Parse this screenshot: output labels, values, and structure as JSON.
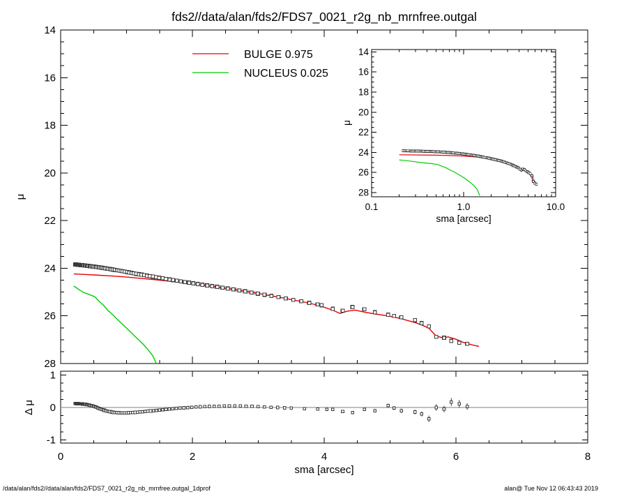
{
  "page": {
    "title": "fds2//data/alan/fds2/FDS7_0021_r2g_nb_mrnfree.outgal",
    "footer_left": "/data/alan/fds2//data/alan/fds2/FDS7_0021_r2g_nb_mrnfree.outgal_1dprof",
    "footer_right": "alan@  Tue Nov 12 06:43:43 2019"
  },
  "legend": {
    "entries": [
      {
        "name": "BULGE",
        "value": "0.975",
        "label": "BULGE  0.975",
        "color": "#e60000"
      },
      {
        "name": "NUCLEUS",
        "value": "0.025",
        "label": "NUCLEUS  0.025",
        "color": "#00cc00"
      }
    ]
  },
  "axes": {
    "mu": "μ",
    "dmu": "Δ μ",
    "sma": "sma [arcsec]"
  },
  "colors": {
    "bulge": "#e60000",
    "nucleus": "#00cc00",
    "marker": "#3a3a3a",
    "halo": "#c4c4c4",
    "zero_line": "#999999",
    "frame": "#000000"
  },
  "chart_data": [
    {
      "id": "main",
      "type": "scatter",
      "xlabel": "sma [arcsec]",
      "ylabel": "μ",
      "xlim": [
        0,
        8
      ],
      "ylim": [
        28,
        14
      ],
      "x_major_step": 2,
      "x_minor_step": 0.5,
      "y_major_step": 2,
      "y_minor_step": 0.5,
      "ytick_labels": [
        "14",
        "16",
        "18",
        "20",
        "22",
        "24",
        "26",
        "28"
      ],
      "yticks": [
        14,
        16,
        18,
        20,
        22,
        24,
        26,
        28
      ],
      "grid": false,
      "legend_position": "top-left-inside",
      "series": [
        {
          "name": "BULGE",
          "type": "line",
          "color": "#e60000",
          "fraction": 0.975,
          "points": [
            [
              0.2,
              24.24
            ],
            [
              0.5,
              24.28
            ],
            [
              0.8,
              24.33
            ],
            [
              1.0,
              24.37
            ],
            [
              1.2,
              24.42
            ],
            [
              1.4,
              24.47
            ],
            [
              1.6,
              24.53
            ],
            [
              1.8,
              24.59
            ],
            [
              2.0,
              24.65
            ],
            [
              2.2,
              24.72
            ],
            [
              2.4,
              24.8
            ],
            [
              2.6,
              24.88
            ],
            [
              2.8,
              24.97
            ],
            [
              3.0,
              25.06
            ],
            [
              3.2,
              25.16
            ],
            [
              3.4,
              25.26
            ],
            [
              3.6,
              25.37
            ],
            [
              3.8,
              25.48
            ],
            [
              3.96,
              25.6
            ],
            [
              4.13,
              25.76
            ],
            [
              4.24,
              25.9
            ],
            [
              4.35,
              25.8
            ],
            [
              4.47,
              25.76
            ],
            [
              4.61,
              25.84
            ],
            [
              4.77,
              25.92
            ],
            [
              4.97,
              26.0
            ],
            [
              5.17,
              26.12
            ],
            [
              5.38,
              26.28
            ],
            [
              5.48,
              26.38
            ],
            [
              5.59,
              26.52
            ],
            [
              5.7,
              26.85
            ],
            [
              5.8,
              26.92
            ],
            [
              5.88,
              26.88
            ],
            [
              6.0,
              26.98
            ],
            [
              6.1,
              27.1
            ],
            [
              6.25,
              27.22
            ],
            [
              6.35,
              27.28
            ]
          ]
        },
        {
          "name": "NUCLEUS",
          "type": "line",
          "color": "#00cc00",
          "fraction": 0.025,
          "points": [
            [
              0.2,
              24.75
            ],
            [
              0.28,
              24.9
            ],
            [
              0.35,
              25.02
            ],
            [
              0.45,
              25.12
            ],
            [
              0.52,
              25.2
            ],
            [
              0.58,
              25.38
            ],
            [
              0.65,
              25.55
            ],
            [
              0.72,
              25.78
            ],
            [
              0.78,
              25.92
            ],
            [
              0.85,
              26.12
            ],
            [
              0.95,
              26.38
            ],
            [
              1.05,
              26.65
            ],
            [
              1.15,
              26.92
            ],
            [
              1.25,
              27.18
            ],
            [
              1.32,
              27.4
            ],
            [
              1.4,
              27.68
            ],
            [
              1.5,
              28.3
            ]
          ]
        },
        {
          "name": "galaxy-profile",
          "type": "markers",
          "marker": "open-square",
          "color": "#3a3a3a",
          "halo_color": "#c4c4c4",
          "anchors": [
            [
              0.22,
              23.84
            ],
            [
              0.35,
              23.88
            ],
            [
              0.5,
              23.93
            ],
            [
              0.65,
              23.99
            ],
            [
              0.8,
              24.06
            ],
            [
              0.95,
              24.13
            ],
            [
              1.1,
              24.21
            ],
            [
              1.25,
              24.28
            ],
            [
              1.4,
              24.35
            ],
            [
              1.6,
              24.45
            ],
            [
              1.8,
              24.54
            ],
            [
              2.0,
              24.63
            ],
            [
              2.2,
              24.71
            ],
            [
              2.4,
              24.79
            ],
            [
              2.6,
              24.88
            ],
            [
              2.8,
              24.97
            ],
            [
              3.0,
              25.07
            ],
            [
              3.2,
              25.16
            ],
            [
              3.4,
              25.26
            ],
            [
              3.6,
              25.36
            ],
            [
              3.8,
              25.47
            ],
            [
              3.96,
              25.55
            ],
            [
              4.13,
              25.7
            ],
            [
              4.28,
              25.78
            ],
            [
              4.43,
              25.63
            ],
            [
              4.61,
              25.72
            ],
            [
              4.77,
              25.85
            ],
            [
              4.97,
              25.95
            ],
            [
              5.06,
              26.0
            ],
            [
              5.17,
              26.06
            ],
            [
              5.38,
              26.18
            ],
            [
              5.48,
              26.3
            ],
            [
              5.59,
              26.44
            ],
            [
              5.7,
              26.88
            ],
            [
              5.82,
              26.92
            ],
            [
              5.93,
              27.05
            ],
            [
              6.05,
              27.12
            ],
            [
              6.17,
              27.17
            ]
          ],
          "resample": {
            "spacing": "log",
            "start": 0.22,
            "dense_end": 3.9,
            "dense_count": 88
          }
        }
      ]
    },
    {
      "id": "inset",
      "type": "scatter",
      "xscale": "log",
      "xlabel": "sma [arcsec]",
      "ylabel": "μ",
      "xlim": [
        0.1,
        10
      ],
      "ylim": [
        28.42,
        13.76
      ],
      "xticks": [
        0.1,
        1,
        10
      ],
      "xtick_labels": [
        "0.1",
        "1.0",
        "10.0"
      ],
      "yticks": [
        14,
        16,
        18,
        20,
        22,
        24,
        26,
        28
      ],
      "ytick_labels": [
        "14",
        "16",
        "18",
        "20",
        "22",
        "24",
        "26",
        "28"
      ],
      "y_minor_step": 0.5,
      "grid": false,
      "series_refs": [
        "BULGE",
        "NUCLEUS",
        "galaxy-profile"
      ],
      "resample": {
        "spacing": "log",
        "start": 0.22,
        "end": 6.17,
        "count": 90
      }
    },
    {
      "id": "residual",
      "type": "scatter",
      "xlabel": "sma [arcsec]",
      "ylabel": "Δ μ",
      "xlim": [
        0,
        8
      ],
      "ylim": [
        -1.097,
        1.118
      ],
      "x_major_step": 2,
      "x_minor_step": 0.5,
      "xticks": [
        0,
        2,
        4,
        6,
        8
      ],
      "xtick_labels": [
        "0",
        "2",
        "4",
        "6",
        "8"
      ],
      "yticks": [
        1,
        0,
        -1
      ],
      "ytick_labels": [
        "1",
        "0",
        "-1"
      ],
      "y_minor_step": 0.25,
      "zero_line": true,
      "grid": false,
      "series": [
        {
          "name": "delta-mu",
          "type": "markers",
          "marker": "open-square",
          "color": "#3a3a3a",
          "halo_color": "#c8c8c8",
          "anchors": [
            [
              0.22,
              0.12,
              0
            ],
            [
              0.3,
              0.115,
              0
            ],
            [
              0.4,
              0.09,
              0
            ],
            [
              0.48,
              0.05,
              0
            ],
            [
              0.55,
              0.0,
              0
            ],
            [
              0.62,
              -0.06,
              0
            ],
            [
              0.7,
              -0.11,
              0
            ],
            [
              0.8,
              -0.15,
              0
            ],
            [
              0.9,
              -0.165,
              0
            ],
            [
              1.0,
              -0.165,
              0
            ],
            [
              1.1,
              -0.155,
              0
            ],
            [
              1.22,
              -0.135,
              0
            ],
            [
              1.35,
              -0.11,
              0
            ],
            [
              1.5,
              -0.08,
              0
            ],
            [
              1.65,
              -0.05,
              0
            ],
            [
              1.8,
              -0.02,
              0
            ],
            [
              1.95,
              0.0,
              0
            ],
            [
              2.1,
              0.02,
              0
            ],
            [
              2.3,
              0.035,
              0
            ],
            [
              2.5,
              0.045,
              0
            ],
            [
              2.7,
              0.05,
              0
            ],
            [
              2.9,
              0.035,
              0
            ],
            [
              3.1,
              0.015,
              0
            ],
            [
              3.3,
              0.0,
              0
            ],
            [
              3.5,
              -0.02,
              0.03
            ],
            [
              3.7,
              -0.035,
              0.03
            ],
            [
              3.9,
              -0.05,
              0.035
            ],
            [
              4.04,
              -0.06,
              0.04
            ],
            [
              4.13,
              -0.06,
              0.04
            ],
            [
              4.28,
              -0.12,
              0.045
            ],
            [
              4.43,
              -0.16,
              0.05
            ],
            [
              4.61,
              -0.06,
              0.05
            ],
            [
              4.77,
              -0.1,
              0.055
            ],
            [
              4.97,
              0.06,
              0.06
            ],
            [
              5.06,
              -0.02,
              0.06
            ],
            [
              5.17,
              -0.1,
              0.065
            ],
            [
              5.38,
              -0.14,
              0.07
            ],
            [
              5.48,
              -0.2,
              0.075
            ],
            [
              5.59,
              -0.35,
              0.1
            ],
            [
              5.7,
              0.0,
              0.1
            ],
            [
              5.82,
              -0.05,
              0.1
            ],
            [
              5.93,
              0.17,
              0.12
            ],
            [
              6.05,
              0.11,
              0.12
            ],
            [
              6.17,
              0.03,
              0.1
            ]
          ],
          "resample": {
            "spacing": "log",
            "start": 0.22,
            "dense_end": 3.4,
            "dense_count": 88
          }
        }
      ]
    }
  ]
}
